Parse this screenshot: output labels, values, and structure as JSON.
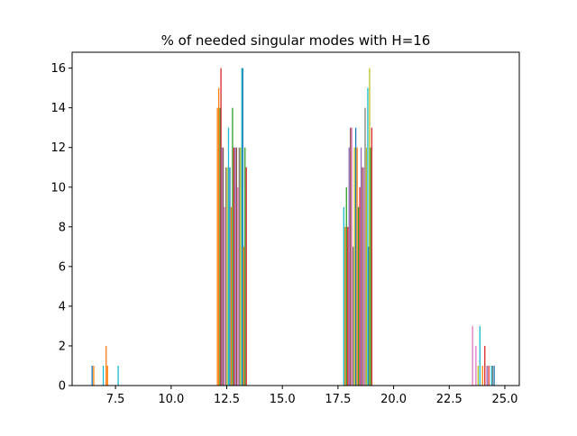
{
  "chart_data": {
    "type": "bar",
    "title": "% of needed singular modes with H=16",
    "xlabel": "",
    "ylabel": "",
    "xlim": [
      5.55,
      25.65
    ],
    "ylim": [
      0,
      16.8
    ],
    "xticks": [
      7.5,
      10.0,
      12.5,
      15.0,
      17.5,
      20.0,
      22.5,
      25.0
    ],
    "xtick_labels": [
      "7.5",
      "10.0",
      "12.5",
      "15.0",
      "17.5",
      "20.0",
      "22.5",
      "25.0"
    ],
    "yticks": [
      0,
      2,
      4,
      6,
      8,
      10,
      12,
      14,
      16
    ],
    "ytick_labels": [
      "0",
      "2",
      "4",
      "6",
      "8",
      "10",
      "12",
      "14",
      "16"
    ],
    "grid": false,
    "legend": "none",
    "bars": [
      {
        "x": 6.45,
        "value": 1,
        "color": "#1f77b4"
      },
      {
        "x": 6.52,
        "value": 1,
        "color": "#ff7f0e"
      },
      {
        "x": 6.95,
        "value": 1,
        "color": "#17becf"
      },
      {
        "x": 7.08,
        "value": 2,
        "color": "#ff7f0e"
      },
      {
        "x": 7.14,
        "value": 1,
        "color": "#ff7f0e"
      },
      {
        "x": 7.62,
        "value": 1,
        "color": "#17becf"
      },
      {
        "x": 12.08,
        "value": 14,
        "color": "#ff7f0e"
      },
      {
        "x": 12.14,
        "value": 15,
        "color": "#ff7f0e"
      },
      {
        "x": 12.2,
        "value": 14,
        "color": "#2ca02c"
      },
      {
        "x": 12.24,
        "value": 16,
        "color": "#d62728"
      },
      {
        "x": 12.28,
        "value": 12,
        "color": "#9467bd"
      },
      {
        "x": 12.34,
        "value": 12,
        "color": "#8c564b"
      },
      {
        "x": 12.4,
        "value": 9,
        "color": "#e377c2"
      },
      {
        "x": 12.46,
        "value": 11,
        "color": "#7f7f7f"
      },
      {
        "x": 12.52,
        "value": 11,
        "color": "#bcbd22"
      },
      {
        "x": 12.58,
        "value": 13,
        "color": "#17becf"
      },
      {
        "x": 12.64,
        "value": 11,
        "color": "#1f77b4"
      },
      {
        "x": 12.7,
        "value": 9,
        "color": "#ff7f0e"
      },
      {
        "x": 12.76,
        "value": 14,
        "color": "#2ca02c"
      },
      {
        "x": 12.82,
        "value": 12,
        "color": "#d62728"
      },
      {
        "x": 12.88,
        "value": 12,
        "color": "#9467bd"
      },
      {
        "x": 12.94,
        "value": 12,
        "color": "#8c564b"
      },
      {
        "x": 13.0,
        "value": 10,
        "color": "#e377c2"
      },
      {
        "x": 13.06,
        "value": 12,
        "color": "#7f7f7f"
      },
      {
        "x": 13.12,
        "value": 12,
        "color": "#bcbd22"
      },
      {
        "x": 13.18,
        "value": 16,
        "color": "#17becf"
      },
      {
        "x": 13.22,
        "value": 16,
        "color": "#1f77b4"
      },
      {
        "x": 13.26,
        "value": 7,
        "color": "#ff7f0e"
      },
      {
        "x": 13.32,
        "value": 12,
        "color": "#2ca02c"
      },
      {
        "x": 13.38,
        "value": 11,
        "color": "#d62728"
      },
      {
        "x": 17.76,
        "value": 9,
        "color": "#17becf"
      },
      {
        "x": 17.82,
        "value": 8,
        "color": "#ff7f0e"
      },
      {
        "x": 17.88,
        "value": 10,
        "color": "#2ca02c"
      },
      {
        "x": 17.94,
        "value": 8,
        "color": "#d62728"
      },
      {
        "x": 18.0,
        "value": 12,
        "color": "#9467bd"
      },
      {
        "x": 18.06,
        "value": 13,
        "color": "#8c564b"
      },
      {
        "x": 18.12,
        "value": 13,
        "color": "#e377c2"
      },
      {
        "x": 18.18,
        "value": 7,
        "color": "#7f7f7f"
      },
      {
        "x": 18.24,
        "value": 12,
        "color": "#bcbd22"
      },
      {
        "x": 18.3,
        "value": 13,
        "color": "#1f77b4"
      },
      {
        "x": 18.36,
        "value": 12,
        "color": "#ff7f0e"
      },
      {
        "x": 18.42,
        "value": 9,
        "color": "#2ca02c"
      },
      {
        "x": 18.48,
        "value": 10,
        "color": "#d62728"
      },
      {
        "x": 18.54,
        "value": 12,
        "color": "#9467bd"
      },
      {
        "x": 18.6,
        "value": 11,
        "color": "#8c564b"
      },
      {
        "x": 18.66,
        "value": 11,
        "color": "#e377c2"
      },
      {
        "x": 18.72,
        "value": 14,
        "color": "#7f7f7f"
      },
      {
        "x": 18.78,
        "value": 12,
        "color": "#bcbd22"
      },
      {
        "x": 18.84,
        "value": 15,
        "color": "#17becf"
      },
      {
        "x": 18.88,
        "value": 7,
        "color": "#1f77b4"
      },
      {
        "x": 18.92,
        "value": 16,
        "color": "#bcbd22"
      },
      {
        "x": 18.96,
        "value": 12,
        "color": "#2ca02c"
      },
      {
        "x": 19.02,
        "value": 13,
        "color": "#d62728"
      },
      {
        "x": 23.55,
        "value": 3,
        "color": "#e377c2"
      },
      {
        "x": 23.7,
        "value": 2,
        "color": "#e377c2"
      },
      {
        "x": 23.8,
        "value": 1,
        "color": "#bcbd22"
      },
      {
        "x": 23.88,
        "value": 3,
        "color": "#17becf"
      },
      {
        "x": 24.0,
        "value": 1,
        "color": "#ff7f0e"
      },
      {
        "x": 24.1,
        "value": 2,
        "color": "#d62728"
      },
      {
        "x": 24.2,
        "value": 1,
        "color": "#9467bd"
      },
      {
        "x": 24.28,
        "value": 1,
        "color": "#d62728"
      },
      {
        "x": 24.4,
        "value": 1,
        "color": "#17becf"
      },
      {
        "x": 24.45,
        "value": 1,
        "color": "#7f7f7f"
      },
      {
        "x": 24.52,
        "value": 1,
        "color": "#1f77b4"
      }
    ]
  }
}
